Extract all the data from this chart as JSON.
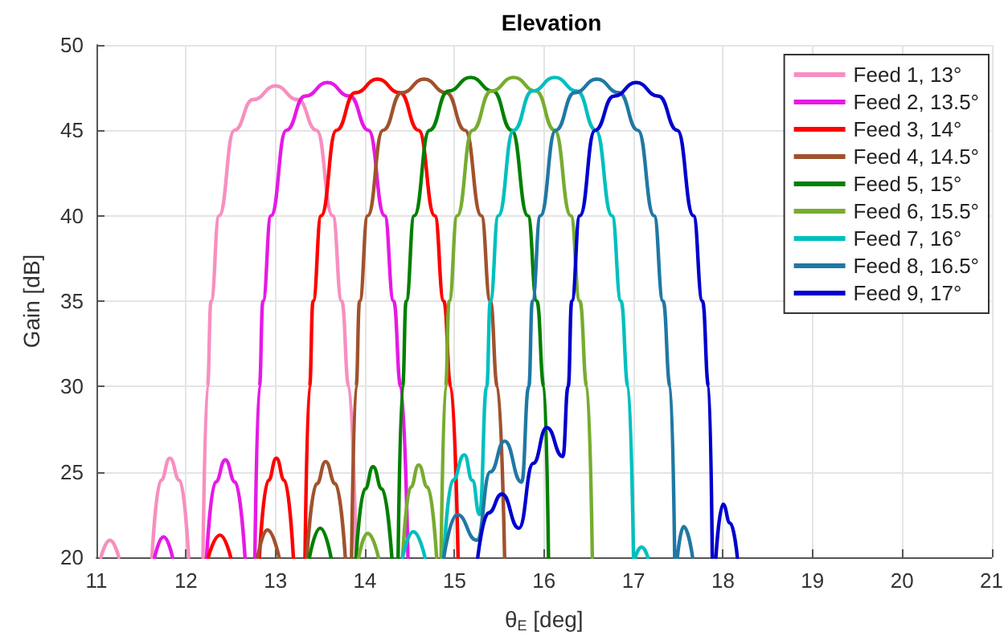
{
  "chart_data": {
    "type": "line",
    "title": "Elevation",
    "xlabel": "θ$_{E}$ [deg]",
    "ylabel": "Gain [dB]",
    "xlim": [
      11,
      21
    ],
    "xticks": [
      11,
      12,
      13,
      14,
      15,
      16,
      17,
      18,
      19,
      20,
      21
    ],
    "ylim": [
      20,
      50
    ],
    "yticks": [
      20,
      25,
      30,
      35,
      40,
      45,
      50
    ],
    "grid": true,
    "legend": "top right",
    "marker": "none",
    "line_style": "solid",
    "series": [
      {
        "name": "Feed 1, 13°",
        "color": "#f78fbf",
        "x": [
          11.05,
          11.15,
          11.25,
          11.4,
          11.62,
          11.72,
          11.82,
          11.93,
          12.03,
          12.1,
          12.19,
          12.24,
          12.28,
          12.37,
          12.54,
          12.75,
          13.0,
          13.25,
          13.46,
          13.64,
          13.74,
          13.82,
          13.9
        ],
        "values": [
          20,
          21.0,
          20,
          null,
          20,
          24.5,
          25.8,
          24.5,
          20,
          null,
          20,
          30,
          35,
          40,
          45,
          46.8,
          47.6,
          46.8,
          45,
          40,
          35,
          30,
          20
        ]
      },
      {
        "name": "Feed 2, 13.5°",
        "color": "#e619e6",
        "x": [
          11.65,
          11.75,
          11.85,
          12.0,
          12.23,
          12.33,
          12.44,
          12.55,
          12.66,
          12.7,
          12.77,
          12.82,
          12.86,
          12.95,
          13.12,
          13.33,
          13.58,
          13.83,
          14.04,
          14.22,
          14.32,
          14.4,
          14.48
        ],
        "values": [
          20,
          21.2,
          20,
          null,
          20,
          24.4,
          25.7,
          24.4,
          20,
          null,
          20,
          30,
          35,
          40,
          45,
          47.0,
          47.8,
          47.0,
          45,
          40,
          35,
          30,
          20
        ]
      },
      {
        "name": "Feed 3, 14°",
        "color": "#ff0000",
        "x": [
          12.25,
          12.38,
          12.5,
          12.65,
          12.82,
          12.92,
          13.01,
          13.1,
          13.2,
          13.26,
          13.33,
          13.38,
          13.42,
          13.51,
          13.68,
          13.89,
          14.14,
          14.39,
          14.6,
          14.78,
          14.88,
          14.96,
          15.04
        ],
        "values": [
          20,
          21.3,
          20,
          null,
          20,
          24.5,
          25.8,
          24.5,
          20,
          null,
          20,
          30,
          35,
          40,
          45,
          47.2,
          48.0,
          47.2,
          45,
          40,
          35,
          30,
          20
        ]
      },
      {
        "name": "Feed 4, 14.5°",
        "color": "#a0522d",
        "x": [
          12.8,
          12.91,
          13.04,
          13.2,
          13.35,
          13.46,
          13.56,
          13.67,
          13.78,
          13.82,
          13.85,
          13.9,
          13.94,
          14.03,
          14.2,
          14.41,
          14.66,
          14.91,
          15.12,
          15.3,
          15.4,
          15.48,
          15.56
        ],
        "values": [
          20,
          21.6,
          20,
          null,
          20,
          24.3,
          25.6,
          24.3,
          20,
          null,
          20,
          30,
          35,
          40,
          45,
          47.2,
          48.0,
          47.2,
          45,
          40,
          35,
          30,
          20
        ]
      },
      {
        "name": "Feed 5, 15°",
        "color": "#008000",
        "x": [
          13.38,
          13.5,
          13.62,
          13.75,
          13.9,
          14.0,
          14.09,
          14.19,
          14.3,
          14.34,
          14.37,
          14.42,
          14.46,
          14.55,
          14.72,
          14.93,
          15.18,
          15.43,
          15.64,
          15.82,
          15.92,
          16.0,
          16.05
        ],
        "values": [
          20,
          21.7,
          20,
          null,
          20,
          24.0,
          25.3,
          24.0,
          20,
          null,
          20,
          30,
          35,
          40,
          45,
          47.3,
          48.1,
          47.3,
          45,
          40,
          35,
          30,
          20
        ]
      },
      {
        "name": "Feed 6, 15.5°",
        "color": "#77ac30",
        "x": [
          13.93,
          14.03,
          14.15,
          14.3,
          14.42,
          14.51,
          14.6,
          14.7,
          14.8,
          14.83,
          14.85,
          14.9,
          14.94,
          15.03,
          15.2,
          15.41,
          15.66,
          15.91,
          16.12,
          16.3,
          16.4,
          16.48,
          16.54
        ],
        "values": [
          20,
          21.4,
          20,
          null,
          20,
          24.1,
          25.4,
          24.1,
          20,
          null,
          20,
          30,
          35,
          40,
          45,
          47.3,
          48.1,
          47.3,
          45,
          40,
          35,
          30,
          20
        ]
      },
      {
        "name": "Feed 7, 16°",
        "color": "#00bfbf",
        "x": [
          14.42,
          14.54,
          14.67,
          14.78,
          14.88,
          14.98,
          15.11,
          15.2,
          15.28,
          15.36,
          15.4,
          15.49,
          15.66,
          15.87,
          16.12,
          16.37,
          16.58,
          16.76,
          16.86,
          16.94,
          17.0,
          17.01,
          17.02,
          17.09,
          17.16
        ],
        "values": [
          20,
          21.5,
          20,
          null,
          20,
          24.5,
          26.0,
          24.5,
          22.5,
          30,
          35,
          40,
          45,
          47.3,
          48.1,
          47.3,
          45,
          40,
          35,
          30,
          20,
          null,
          20,
          20.6,
          20
        ]
      },
      {
        "name": "Feed 8, 16.5°",
        "color": "#1f78a4",
        "x": [
          14.88,
          15.03,
          15.25,
          15.4,
          15.56,
          15.75,
          15.83,
          15.87,
          15.96,
          16.13,
          16.34,
          16.59,
          16.84,
          17.05,
          17.23,
          17.33,
          17.41,
          17.46,
          17.47,
          17.49,
          17.56,
          17.66
        ],
        "values": [
          20,
          22.5,
          21.0,
          25.0,
          26.8,
          24.4,
          30,
          35,
          40,
          45,
          47.2,
          48.0,
          47.2,
          45,
          40,
          35,
          30,
          20,
          null,
          20,
          21.8,
          20
        ]
      },
      {
        "name": "Feed 9, 17°",
        "color": "#0000cd",
        "x": [
          15.26,
          15.38,
          15.53,
          15.72,
          15.88,
          16.03,
          16.21,
          16.27,
          16.31,
          16.4,
          16.57,
          16.78,
          17.03,
          17.28,
          17.49,
          17.67,
          17.77,
          17.84,
          17.88,
          17.9,
          17.92,
          18.0,
          18.08,
          18.16
        ],
        "values": [
          20,
          22.6,
          23.7,
          21.7,
          25.5,
          27.6,
          25.9,
          30,
          35,
          40,
          45,
          47.0,
          47.8,
          47.0,
          45,
          40,
          35,
          30,
          20,
          null,
          20,
          23.1,
          22.0,
          20
        ]
      }
    ]
  }
}
